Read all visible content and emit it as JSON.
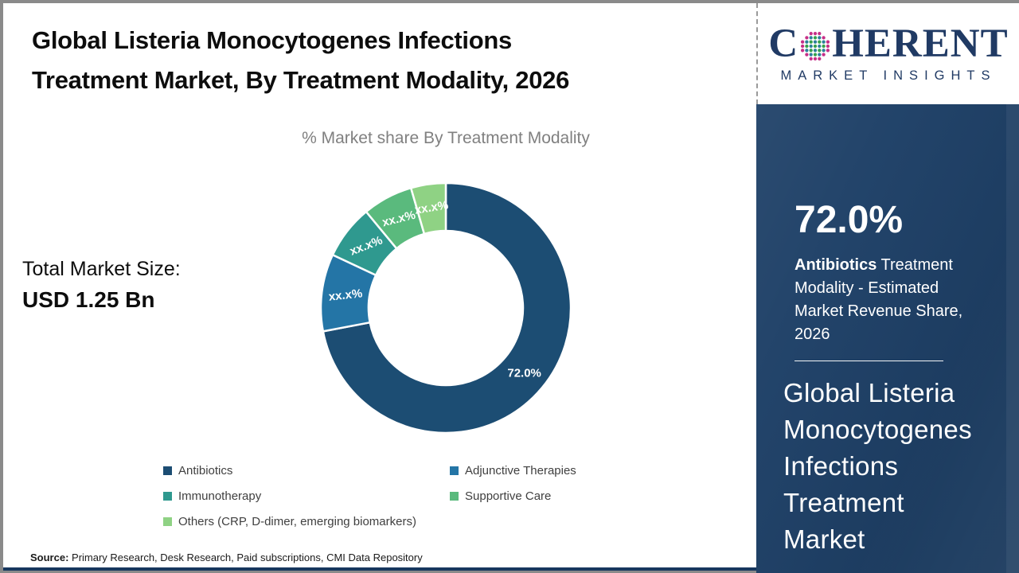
{
  "colors": {
    "frame_gray": "#8a8a8a",
    "sidebar_navy": "#1e4067",
    "logo_navy": "#203a64",
    "bottom_bar_navy": "#17375e"
  },
  "header": {
    "title": "Global Listeria Monocytogenes Infections\nTreatment Market, By Treatment Modality, 2026",
    "subtitle": "% Market share By Treatment Modality"
  },
  "total_market": {
    "label": "Total Market Size:",
    "value": "USD 1.25 Bn"
  },
  "chart_data": {
    "type": "pie",
    "donut": true,
    "title": "% Market share By Treatment Modality",
    "categories": [
      "Antibiotics",
      "Adjunctive Therapies",
      "Immunotherapy",
      "Supportive Care",
      "Others (CRP, D-dimer, emerging biomarkers)"
    ],
    "values": [
      72.0,
      10.0,
      7.0,
      6.5,
      4.5
    ],
    "labels": [
      "72.0%",
      "xx.x%",
      "xx.x%",
      "xx.x%",
      "xx.x%"
    ],
    "colors": [
      "#1c4d73",
      "#2475a6",
      "#2f998f",
      "#5aba7d",
      "#8fd284"
    ],
    "legend_position": "bottom",
    "start_angle_deg": 0,
    "direction": "clockwise"
  },
  "sidebar": {
    "stat_value": "72.0%",
    "stat_bold": "Antibiotics",
    "stat_rest": " Treatment Modality - Estimated Market Revenue Share, 2026",
    "market_title": "Global Listeria\nMonocytogenes\nInfections\nTreatment\nMarket"
  },
  "logo": {
    "word_start": "C",
    "word_end": "HERENT",
    "tagline": "MARKET INSIGHTS"
  },
  "source": {
    "label": "Source:",
    "text": " Primary Research, Desk Research, Paid subscriptions, CMI Data Repository"
  }
}
